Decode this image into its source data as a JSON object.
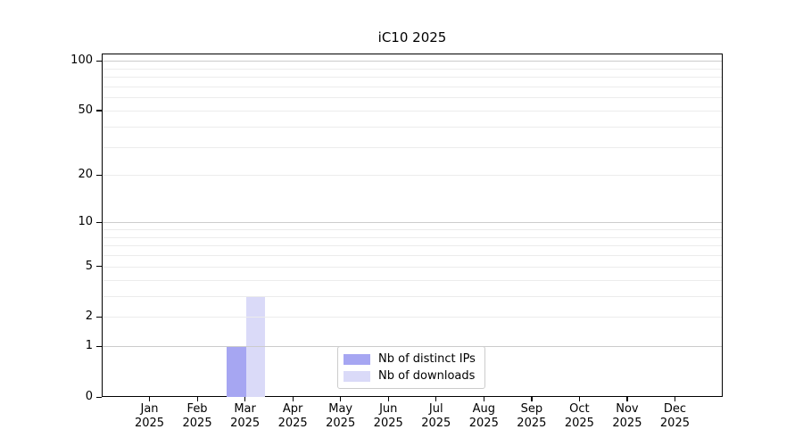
{
  "title": "iC10 2025",
  "chart_data": {
    "type": "bar",
    "title": "iC10 2025",
    "categories": [
      "Jan",
      "Feb",
      "Mar",
      "Apr",
      "May",
      "Jun",
      "Jul",
      "Aug",
      "Sep",
      "Oct",
      "Nov",
      "Dec"
    ],
    "category_year": "2025",
    "series": [
      {
        "name": "Nb of distinct IPs",
        "color": "#a6a6f2",
        "values": [
          0,
          0,
          1,
          0,
          0,
          0,
          0,
          0,
          0,
          0,
          0,
          0
        ]
      },
      {
        "name": "Nb of downloads",
        "color": "#dadaf8",
        "values": [
          0,
          0,
          3,
          0,
          0,
          0,
          0,
          0,
          0,
          0,
          0,
          0
        ]
      }
    ],
    "y_scale": "log10(1+x)",
    "y_ticks": [
      0,
      1,
      2,
      5,
      10,
      20,
      50,
      100
    ],
    "ylim": [
      0,
      111
    ],
    "grid": "horizontal",
    "legend_position": "lower center",
    "colors": {
      "grid_major": "#cccccc",
      "grid_minor": "#ececec",
      "axis": "#000000",
      "background": "#ffffff"
    }
  }
}
